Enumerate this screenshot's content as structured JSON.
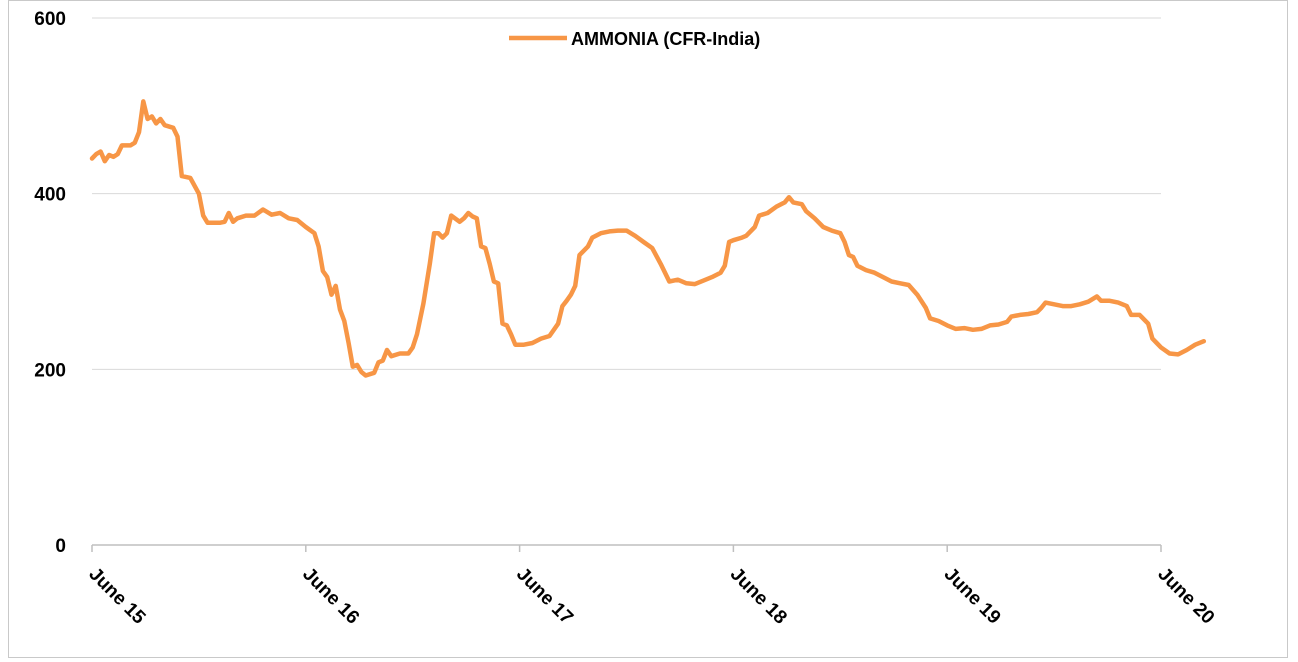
{
  "chart_data": {
    "type": "line",
    "title": "",
    "xlabel": "",
    "ylabel": "",
    "ylim": [
      0,
      600
    ],
    "yticks": [
      0,
      200,
      400,
      600
    ],
    "xtick_labels": [
      "June 15",
      "June 16",
      "June 17",
      "June 18",
      "June 19",
      "June 20"
    ],
    "xlim": [
      0,
      5
    ],
    "grid": "horizontal",
    "legend_position": "top-center",
    "series": [
      {
        "name": "AMMONIA (CFR-India)",
        "color": "#F79646",
        "points": [
          [
            0.0,
            440
          ],
          [
            0.02,
            445
          ],
          [
            0.04,
            448
          ],
          [
            0.06,
            437
          ],
          [
            0.08,
            444
          ],
          [
            0.1,
            442
          ],
          [
            0.12,
            445
          ],
          [
            0.14,
            455
          ],
          [
            0.18,
            455
          ],
          [
            0.2,
            458
          ],
          [
            0.22,
            470
          ],
          [
            0.24,
            505
          ],
          [
            0.26,
            485
          ],
          [
            0.28,
            488
          ],
          [
            0.3,
            480
          ],
          [
            0.32,
            485
          ],
          [
            0.34,
            478
          ],
          [
            0.38,
            475
          ],
          [
            0.4,
            465
          ],
          [
            0.42,
            420
          ],
          [
            0.46,
            418
          ],
          [
            0.5,
            400
          ],
          [
            0.52,
            375
          ],
          [
            0.54,
            367
          ],
          [
            0.6,
            367
          ],
          [
            0.62,
            368
          ],
          [
            0.64,
            378
          ],
          [
            0.66,
            368
          ],
          [
            0.68,
            372
          ],
          [
            0.72,
            375
          ],
          [
            0.76,
            375
          ],
          [
            0.8,
            382
          ],
          [
            0.84,
            376
          ],
          [
            0.88,
            378
          ],
          [
            0.92,
            372
          ],
          [
            0.96,
            370
          ],
          [
            1.0,
            362
          ],
          [
            1.04,
            355
          ],
          [
            1.06,
            340
          ],
          [
            1.08,
            312
          ],
          [
            1.1,
            305
          ],
          [
            1.12,
            285
          ],
          [
            1.14,
            295
          ],
          [
            1.16,
            268
          ],
          [
            1.18,
            255
          ],
          [
            1.2,
            230
          ],
          [
            1.22,
            203
          ],
          [
            1.24,
            205
          ],
          [
            1.26,
            197
          ],
          [
            1.28,
            193
          ],
          [
            1.32,
            196
          ],
          [
            1.34,
            208
          ],
          [
            1.36,
            210
          ],
          [
            1.38,
            222
          ],
          [
            1.4,
            215
          ],
          [
            1.44,
            218
          ],
          [
            1.48,
            218
          ],
          [
            1.5,
            225
          ],
          [
            1.52,
            240
          ],
          [
            1.55,
            275
          ],
          [
            1.58,
            320
          ],
          [
            1.6,
            355
          ],
          [
            1.62,
            355
          ],
          [
            1.64,
            350
          ],
          [
            1.66,
            355
          ],
          [
            1.68,
            375
          ],
          [
            1.72,
            368
          ],
          [
            1.74,
            372
          ],
          [
            1.76,
            378
          ],
          [
            1.78,
            374
          ],
          [
            1.8,
            372
          ],
          [
            1.82,
            340
          ],
          [
            1.84,
            338
          ],
          [
            1.86,
            320
          ],
          [
            1.88,
            300
          ],
          [
            1.9,
            298
          ],
          [
            1.92,
            252
          ],
          [
            1.94,
            250
          ],
          [
            1.96,
            240
          ],
          [
            1.98,
            228
          ],
          [
            2.02,
            228
          ],
          [
            2.06,
            230
          ],
          [
            2.1,
            235
          ],
          [
            2.14,
            238
          ],
          [
            2.18,
            252
          ],
          [
            2.2,
            272
          ],
          [
            2.22,
            278
          ],
          [
            2.24,
            285
          ],
          [
            2.26,
            295
          ],
          [
            2.28,
            330
          ],
          [
            2.3,
            335
          ],
          [
            2.32,
            340
          ],
          [
            2.34,
            350
          ],
          [
            2.38,
            355
          ],
          [
            2.42,
            357
          ],
          [
            2.46,
            358
          ],
          [
            2.5,
            358
          ],
          [
            2.54,
            352
          ],
          [
            2.58,
            345
          ],
          [
            2.62,
            338
          ],
          [
            2.66,
            320
          ],
          [
            2.7,
            300
          ],
          [
            2.74,
            302
          ],
          [
            2.78,
            298
          ],
          [
            2.82,
            297
          ],
          [
            2.86,
            301
          ],
          [
            2.9,
            305
          ],
          [
            2.94,
            310
          ],
          [
            2.96,
            318
          ],
          [
            2.98,
            345
          ],
          [
            3.0,
            347
          ],
          [
            3.04,
            350
          ],
          [
            3.06,
            352
          ],
          [
            3.1,
            362
          ],
          [
            3.12,
            375
          ],
          [
            3.16,
            378
          ],
          [
            3.2,
            385
          ],
          [
            3.24,
            390
          ],
          [
            3.26,
            396
          ],
          [
            3.28,
            390
          ],
          [
            3.32,
            388
          ],
          [
            3.34,
            380
          ],
          [
            3.38,
            372
          ],
          [
            3.42,
            362
          ],
          [
            3.46,
            358
          ],
          [
            3.5,
            355
          ],
          [
            3.52,
            345
          ],
          [
            3.54,
            330
          ],
          [
            3.56,
            328
          ],
          [
            3.58,
            318
          ],
          [
            3.62,
            313
          ],
          [
            3.66,
            310
          ],
          [
            3.7,
            305
          ],
          [
            3.74,
            300
          ],
          [
            3.78,
            298
          ],
          [
            3.82,
            296
          ],
          [
            3.86,
            285
          ],
          [
            3.9,
            270
          ],
          [
            3.92,
            258
          ],
          [
            3.96,
            255
          ],
          [
            4.0,
            250
          ],
          [
            4.04,
            246
          ],
          [
            4.08,
            247
          ],
          [
            4.12,
            245
          ],
          [
            4.16,
            246
          ],
          [
            4.2,
            250
          ],
          [
            4.24,
            251
          ],
          [
            4.28,
            254
          ],
          [
            4.3,
            260
          ],
          [
            4.34,
            262
          ],
          [
            4.38,
            263
          ],
          [
            4.42,
            265
          ],
          [
            4.44,
            270
          ],
          [
            4.46,
            276
          ],
          [
            4.5,
            274
          ],
          [
            4.54,
            272
          ],
          [
            4.58,
            272
          ],
          [
            4.62,
            274
          ],
          [
            4.66,
            277
          ],
          [
            4.7,
            283
          ],
          [
            4.72,
            278
          ],
          [
            4.76,
            278
          ],
          [
            4.8,
            276
          ],
          [
            4.84,
            272
          ],
          [
            4.86,
            262
          ],
          [
            4.9,
            262
          ],
          [
            4.94,
            252
          ],
          [
            4.96,
            235
          ],
          [
            4.98,
            230
          ],
          [
            5.0,
            225
          ],
          [
            5.04,
            218
          ],
          [
            5.08,
            217
          ],
          [
            5.12,
            222
          ],
          [
            5.16,
            228
          ],
          [
            5.2,
            232
          ]
        ]
      }
    ]
  }
}
